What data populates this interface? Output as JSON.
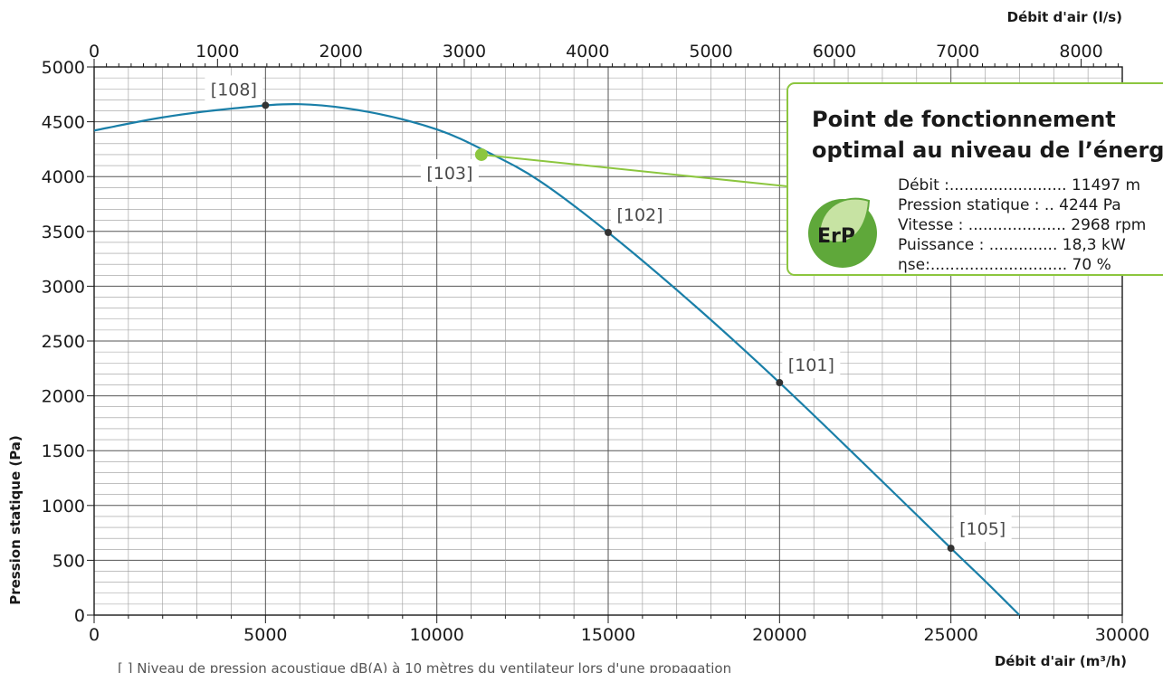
{
  "chart_data": {
    "type": "line",
    "x_bottom_label": "Débit d'air (m³/h)",
    "x_top_label": "Débit d'air (l/s)",
    "ylabel": "Pression statique (Pa)",
    "xlim_m3h": [
      0,
      30000
    ],
    "xlim_ls": [
      0,
      8333.33
    ],
    "ylim": [
      0,
      5000
    ],
    "x_bottom_ticks": [
      "0",
      "5000",
      "10000",
      "15000",
      "20000",
      "25000",
      "30000"
    ],
    "x_top_ticks": [
      "0",
      "1000",
      "2000",
      "3000",
      "4000",
      "5000",
      "6000",
      "7000",
      "8000"
    ],
    "y_ticks": [
      "0",
      "500",
      "1000",
      "1500",
      "2000",
      "2500",
      "3000",
      "3500",
      "4000",
      "4500",
      "5000"
    ],
    "grid": true,
    "curve_color": "#1a7fa8",
    "accent_color": "#8cc63f",
    "curve": {
      "x": [
        0,
        2000,
        4000,
        6000,
        8000,
        10000,
        11500,
        13000,
        15000,
        17500,
        20000,
        22500,
        25000,
        26000,
        27000
      ],
      "y": [
        4420,
        4540,
        4620,
        4660,
        4590,
        4430,
        4220,
        3960,
        3490,
        2830,
        2120,
        1370,
        610,
        310,
        0
      ]
    },
    "points": [
      {
        "label": "[108]",
        "x": 5000,
        "y": 4650
      },
      {
        "label": "[103]",
        "x": 11300,
        "y": 4200
      },
      {
        "label": "[102]",
        "x": 15000,
        "y": 3490
      },
      {
        "label": "[101]",
        "x": 20000,
        "y": 2120
      },
      {
        "label": "[105]",
        "x": 25000,
        "y": 610
      }
    ],
    "optimal_point": {
      "x": 11300,
      "y": 4200
    },
    "info_box": {
      "title_line1": "Point de fonctionnement",
      "title_line2": "optimal au niveau de l’énerg",
      "badge": "ErP",
      "rows": [
        "Débit :........................ 11497 m",
        "Pression statique : .. 4244 Pa",
        "Vitesse : .................... 2968 rpm",
        "Puissance : .............. 18,3 kW",
        "ηse:............................ 70 %"
      ]
    },
    "footnote": "[ ]  Niveau de pression acoustique dB(A) à 10 mètres du ventilateur lors d'une propagation"
  }
}
